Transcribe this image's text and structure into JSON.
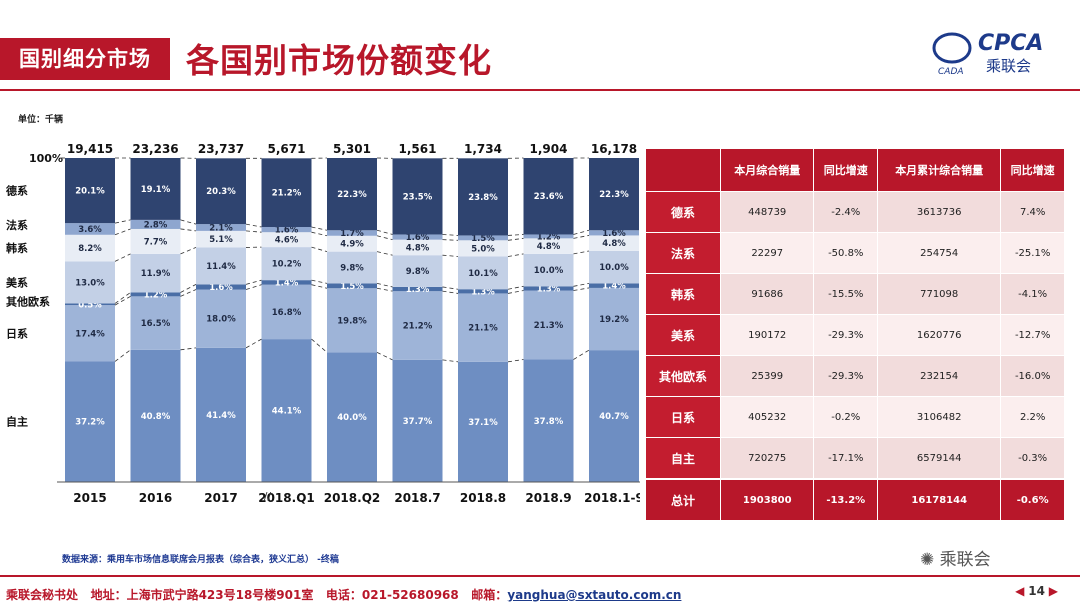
{
  "header": {
    "tag": "国别细分市场",
    "title": "各国别市场份额变化",
    "logo_text": "CPCA",
    "logo_sub": "乘联会",
    "logo_cn": "CADA"
  },
  "unit_label": "单位：千辆",
  "chart_data": {
    "type": "bar",
    "subtype": "stacked-100-percent",
    "categories": [
      "2015",
      "2016",
      "2017",
      "2018.Q1",
      "2018.Q2",
      "2018.7",
      "2018.8",
      "2018.9",
      "2018.1-9"
    ],
    "totals": [
      "19,415",
      "23,236",
      "23,737",
      "5,671",
      "5,301",
      "1,561",
      "1,734",
      "1,904",
      "16,178"
    ],
    "y_top_label": "100%",
    "series": [
      {
        "name": "自主",
        "color": "#6e8ec2",
        "values": [
          37.2,
          40.8,
          41.4,
          44.1,
          40.0,
          37.7,
          37.1,
          37.8,
          40.7
        ]
      },
      {
        "name": "日系",
        "color": "#9eb4d8",
        "values": [
          17.4,
          16.5,
          18.0,
          16.8,
          19.8,
          21.2,
          21.1,
          21.3,
          19.2
        ]
      },
      {
        "name": "其他欧系",
        "color": "#4a6ea6",
        "values": [
          0.5,
          1.2,
          1.6,
          1.4,
          1.5,
          1.3,
          1.3,
          1.3,
          1.4
        ]
      },
      {
        "name": "美系",
        "color": "#c3d0e6",
        "values": [
          13.0,
          11.9,
          11.4,
          10.2,
          9.8,
          9.8,
          10.1,
          10.0,
          10.0
        ]
      },
      {
        "name": "韩系",
        "color": "#e8edf5",
        "values": [
          8.2,
          7.7,
          5.1,
          4.6,
          4.9,
          4.8,
          5.0,
          4.8,
          4.8
        ]
      },
      {
        "name": "法系",
        "color": "#8ea6cf",
        "values": [
          3.6,
          2.8,
          2.1,
          1.6,
          1.7,
          1.6,
          1.5,
          1.2,
          1.6
        ]
      },
      {
        "name": "德系",
        "color": "#2f4470",
        "values": [
          20.1,
          19.1,
          20.3,
          21.2,
          22.3,
          23.5,
          23.8,
          23.6,
          22.3
        ]
      }
    ],
    "label_texts": [
      [
        "37.2%",
        "40.8%",
        "41.4%",
        "44.1%",
        "40.0%",
        "37.7%",
        "37.1%",
        "37.8%",
        "40.7%"
      ],
      [
        "17.4%",
        "16.5%",
        "18.0%",
        "16.8%",
        "19.8%",
        "21.2%",
        "21.1%",
        "21.3%",
        "19.2%"
      ],
      [
        "0.5%",
        "1.2%",
        "1.6%",
        "1.4%",
        "1.5%",
        "1.3%",
        "1.3%",
        "1.3%",
        "1.4%"
      ],
      [
        "13.0%",
        "11.9%",
        "11.4%",
        "10.2%",
        "9.8%",
        "9.8%",
        "10.1%",
        "10.0%",
        "10.0%"
      ],
      [
        "8.2%",
        "7.7%",
        "5.1%",
        "4.6%",
        "4.9%",
        "4.8%",
        "5.0%",
        "4.8%",
        "4.8%"
      ],
      [
        "3.6%",
        "2.8%",
        "2.1%",
        "1.6%",
        "1.7%",
        "1.6%",
        "1.5%",
        "1.2%",
        "1.6%"
      ],
      [
        "20.1%",
        "19.1%",
        "20.3%",
        "21.2%",
        "22.3%",
        "23.5%",
        "23.8%",
        "23.6%",
        "22.3%"
      ]
    ],
    "ylim": [
      0,
      100
    ]
  },
  "table": {
    "headers": [
      "",
      "本月综合销量",
      "同比增速",
      "本月累计综合销量",
      "同比增速"
    ],
    "rows": [
      {
        "cat": "德系",
        "m": "448739",
        "my": "-2.4%",
        "c": "3613736",
        "cy": "7.4%"
      },
      {
        "cat": "法系",
        "m": "22297",
        "my": "-50.8%",
        "c": "254754",
        "cy": "-25.1%"
      },
      {
        "cat": "韩系",
        "m": "91686",
        "my": "-15.5%",
        "c": "771098",
        "cy": "-4.1%"
      },
      {
        "cat": "美系",
        "m": "190172",
        "my": "-29.3%",
        "c": "1620776",
        "cy": "-12.7%"
      },
      {
        "cat": "其他欧系",
        "m": "25399",
        "my": "-29.3%",
        "c": "232154",
        "cy": "-16.0%"
      },
      {
        "cat": "日系",
        "m": "405232",
        "my": "-0.2%",
        "c": "3106482",
        "cy": "2.2%"
      },
      {
        "cat": "自主",
        "m": "720275",
        "my": "-17.1%",
        "c": "6579144",
        "cy": "-0.3%"
      }
    ],
    "total": {
      "cat": "总计",
      "m": "1903800",
      "my": "-13.2%",
      "c": "16178144",
      "cy": "-0.6%"
    }
  },
  "source": "数据来源：乘用车市场信息联席会月报表（综合表，狭义汇总）    -终稿",
  "watermark": "乘联会",
  "footer": {
    "org": "乘联会秘书处",
    "address": "地址：上海市武宁路423号18号楼901室",
    "phone": "电话：021-52680968",
    "email_label": "邮箱：",
    "email": "yanghua@sxtauto.com.cn",
    "page": "14",
    "prev": "◀",
    "next": "▶"
  }
}
